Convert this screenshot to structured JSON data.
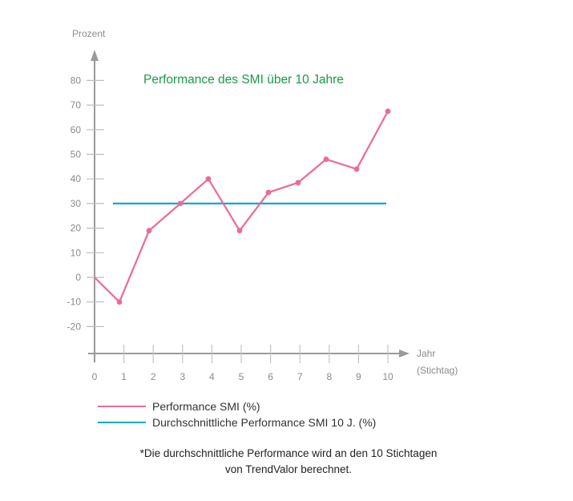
{
  "chart_data": {
    "type": "line",
    "title": "Performance des SMI über 10 Jahre",
    "xlabel": "Jahr (Stichtag)",
    "xlabel_lines": [
      "Jahr",
      "(Stichtag)"
    ],
    "ylabel": "Prozent",
    "x": [
      0,
      1,
      2,
      3,
      4,
      5,
      6,
      7,
      8,
      9,
      10
    ],
    "x_ticks": [
      "0",
      "1",
      "2",
      "3",
      "4",
      "5",
      "6",
      "7",
      "8",
      "9",
      "10"
    ],
    "y_ticks": [
      "80",
      "70",
      "60",
      "50",
      "40",
      "30",
      "20",
      "10",
      "0",
      "-10",
      "-20"
    ],
    "ylim": [
      -30,
      90
    ],
    "grid": false,
    "legend_position": "bottom",
    "series": [
      {
        "name": "Performance SMI (%)",
        "color": "#ec6a96",
        "values": [
          0,
          -10,
          19,
          30,
          40,
          19,
          34.5,
          38.5,
          48,
          44,
          67.5
        ]
      },
      {
        "name": "Durchschnittliche Performance SMI 10 J. (%)",
        "color": "#11aac6",
        "values": [
          30,
          30,
          30,
          30,
          30,
          30,
          30,
          30,
          30,
          30,
          30
        ]
      }
    ],
    "footnote": "*Die durchschnittliche Performance wird an den 10 Stichtagen von TrendValor berechnet."
  },
  "colors": {
    "title": "#1a9a44",
    "axis": "#9a9a9a",
    "performance": "#ec6a96",
    "average": "#11aac6"
  },
  "legend": {
    "items": [
      {
        "label": "Performance SMI (%)"
      },
      {
        "label": "Durchschnittliche Performance SMI 10 J. (%)"
      }
    ]
  },
  "footnote": {
    "line1": "*Die durchschnittliche Performance wird an den 10 Stichtagen",
    "line2": "von TrendValor berechnet."
  }
}
